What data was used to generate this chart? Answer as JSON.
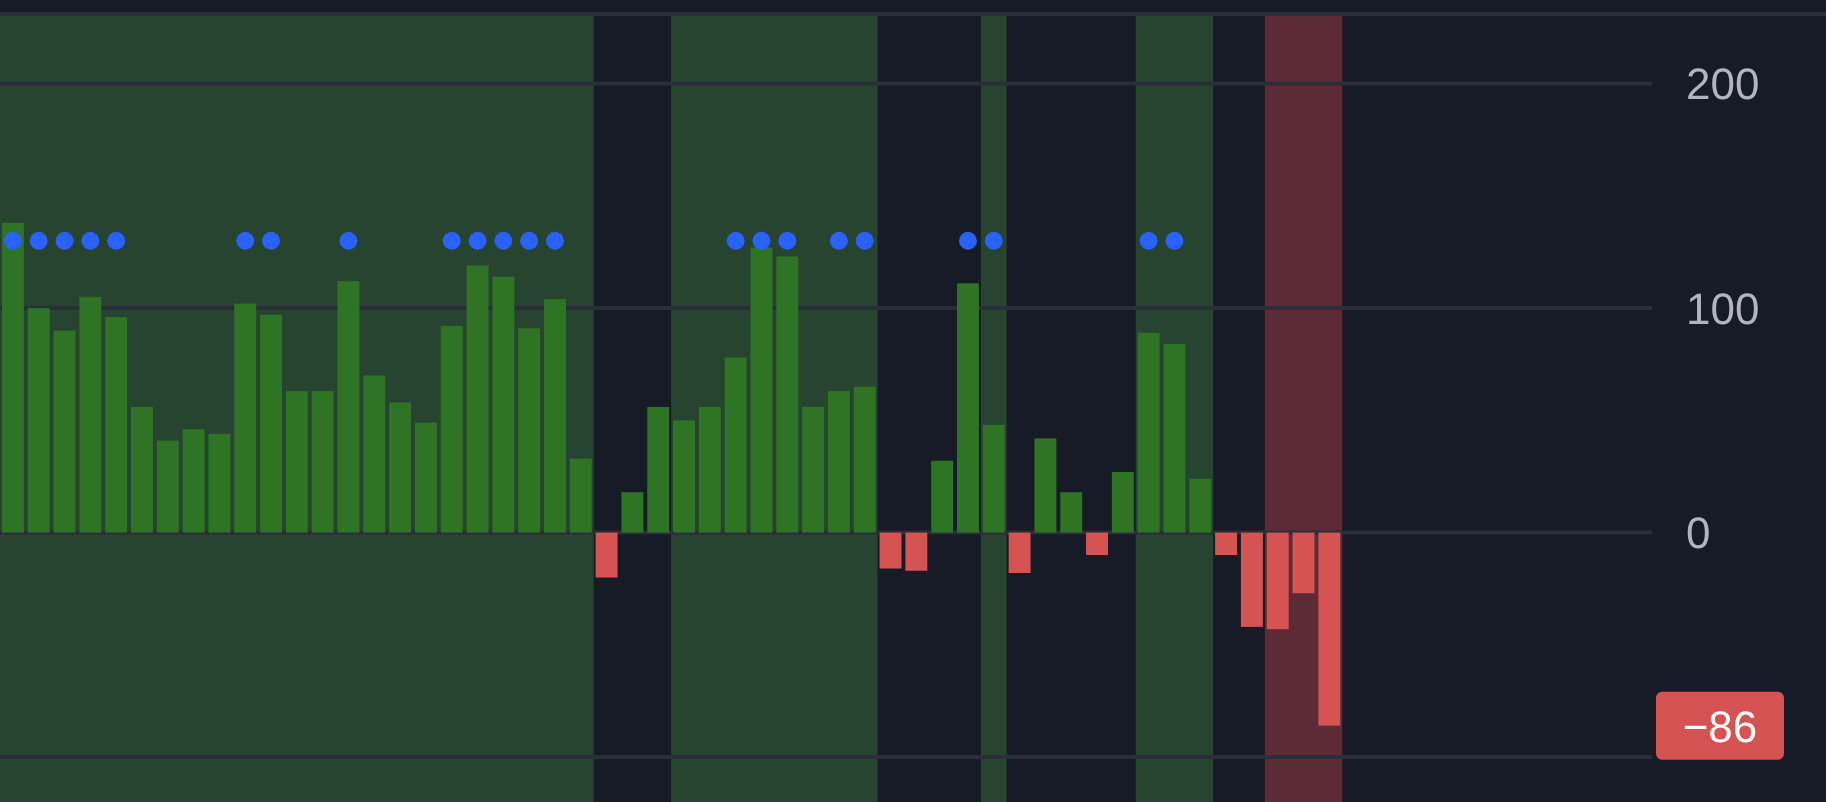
{
  "chart_data": {
    "type": "bar",
    "categories": [
      null,
      null,
      null,
      null,
      null,
      null,
      null,
      null,
      null,
      null,
      null,
      null,
      null,
      null,
      null,
      null,
      null,
      null,
      null,
      null,
      null,
      null,
      null,
      null,
      null,
      null,
      null,
      null,
      null,
      null,
      null,
      null,
      null,
      null,
      null,
      null,
      null,
      null,
      null,
      null,
      null,
      null,
      null,
      null,
      null,
      null,
      null,
      null,
      null,
      null,
      null,
      null,
      null,
      null,
      null,
      null,
      null,
      null,
      null,
      null,
      null,
      null,
      null,
      null
    ],
    "series": [
      {
        "values": [
          138,
          100,
          90,
          105,
          96,
          56,
          41,
          46,
          44,
          102,
          97,
          63,
          63,
          112,
          70,
          58,
          49,
          92,
          119,
          114,
          91,
          104,
          33,
          -20,
          18,
          56,
          50,
          56,
          78,
          127,
          123,
          56,
          63,
          65,
          -16,
          -17,
          32,
          111,
          48,
          -18,
          42,
          18,
          -10,
          27,
          89,
          84,
          24,
          -10,
          -42,
          -43,
          -27,
          -86,
          null,
          null,
          null,
          null,
          null,
          null,
          null,
          null,
          null,
          null,
          null,
          null
        ],
        "colors": [
          "#2f7325",
          "#2f7325",
          "#2f7325",
          "#2f7325",
          "#2f7325",
          "#2f7325",
          "#2f7325",
          "#2f7325",
          "#2f7325",
          "#2f7325",
          "#2f7325",
          "#2f7325",
          "#2f7325",
          "#2f7325",
          "#2f7325",
          "#2f7325",
          "#2f7325",
          "#2f7325",
          "#2f7325",
          "#2f7325",
          "#2f7325",
          "#2f7325",
          "#2f7325",
          "#d55353",
          "#2f7325",
          "#2f7325",
          "#2f7325",
          "#2f7325",
          "#2f7325",
          "#2f7325",
          "#2f7325",
          "#2f7325",
          "#2f7325",
          "#2f7325",
          "#d55353",
          "#d55353",
          "#2f7325",
          "#2f7325",
          "#2f7325",
          "#d55353",
          "#2f7325",
          "#2f7325",
          "#d55353",
          "#2f7325",
          "#2f7325",
          "#2f7325",
          "#2f7325",
          "#d55353",
          "#d55353",
          "#d55353",
          "#d55353",
          "#d55353",
          null,
          null,
          null,
          null,
          null,
          null,
          null,
          null,
          null,
          null,
          null,
          null
        ]
      },
      {
        "type": "scatter",
        "color": "#2962ff",
        "values": [
          130,
          130,
          130,
          130,
          130,
          null,
          null,
          null,
          null,
          130,
          130,
          null,
          null,
          130,
          null,
          null,
          null,
          130,
          130,
          130,
          130,
          130,
          null,
          null,
          null,
          null,
          null,
          null,
          130,
          130,
          130,
          null,
          130,
          130,
          null,
          null,
          null,
          130,
          130,
          null,
          null,
          null,
          null,
          null,
          130,
          130,
          null,
          null,
          null,
          null,
          null,
          null,
          null,
          null,
          null,
          null,
          null,
          null,
          null,
          null,
          null,
          null,
          null,
          null
        ]
      }
    ],
    "ylim": [
      -120,
      231
    ],
    "yticks": [
      200,
      100,
      0,
      {
        "value": -100,
        "label": null
      }
    ],
    "grid": "y",
    "marker": "circle",
    "annotations": [
      "−86"
    ]
  }
}
